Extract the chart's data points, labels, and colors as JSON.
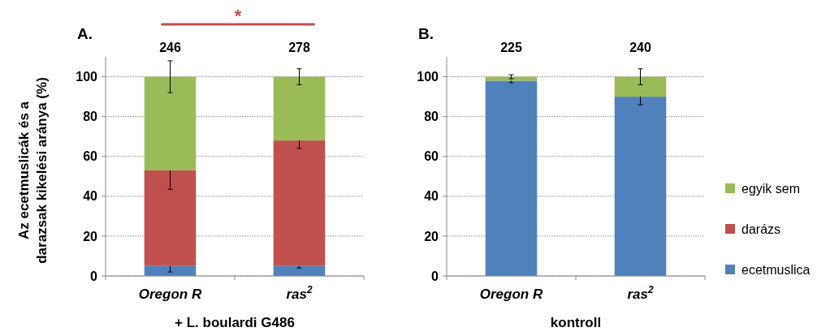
{
  "chart_data": [
    {
      "type": "bar",
      "stacked": true,
      "title": "A.",
      "xlabel": "+ L. boulardi G486",
      "ylabel": "Az ecetmuslicák és a darazsak kikelési aránya (%)",
      "categories": [
        "Oregon R",
        "ras$^{2}$"
      ],
      "series": [
        {
          "color": "#4f81bd",
          "values": [
            5,
            5
          ],
          "errors": [
            3,
            1
          ]
        },
        {
          "color": "#c0504d",
          "values": [
            48,
            63
          ],
          "errors": [
            9.5,
            4
          ]
        },
        {
          "color": "#9bbb59",
          "values": [
            47,
            32
          ],
          "errors": [
            8,
            4
          ]
        }
      ],
      "annotations": [
        "*",
        "246",
        "278"
      ],
      "ylim": [
        0,
        110
      ],
      "yticks": [
        0,
        20,
        40,
        60,
        80,
        100
      ],
      "grid": "y",
      "legend": false
    },
    {
      "type": "bar",
      "stacked": true,
      "title": "B.",
      "xlabel": "kontroll",
      "categories": [
        "Oregon R",
        "ras$^{2}$"
      ],
      "series": [
        {
          "name": "ecetmuslica",
          "color": "#4f81bd",
          "values": [
            98,
            90
          ],
          "errors": [
            1,
            4
          ]
        },
        {
          "name": "darázs",
          "color": "#c0504d",
          "values": [
            0,
            0
          ]
        },
        {
          "name": "egyik sem",
          "color": "#9bbb59",
          "values": [
            2,
            10
          ],
          "errors": [
            1,
            4
          ]
        }
      ],
      "annotations": [
        "225",
        "240"
      ],
      "ylim": [
        0,
        110
      ],
      "yticks": [
        0,
        20,
        40,
        60,
        80,
        100
      ],
      "grid": "y",
      "legend": "right"
    }
  ]
}
